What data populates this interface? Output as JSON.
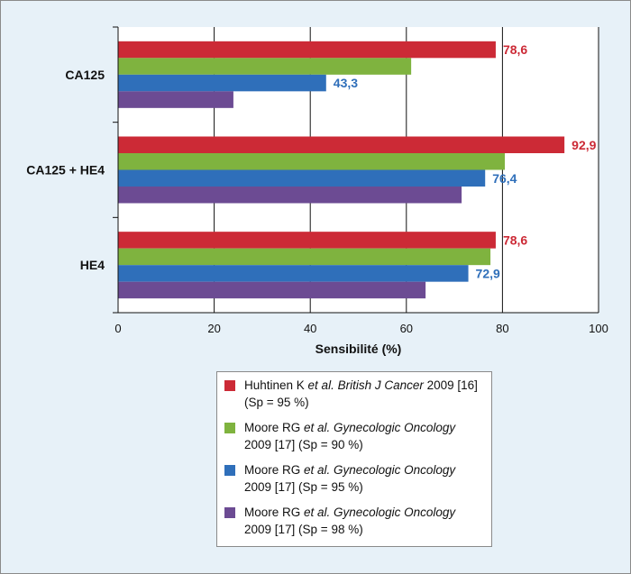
{
  "chart_data": {
    "type": "bar",
    "orientation": "horizontal",
    "categories": [
      "CA125",
      "CA125 + HE4",
      "HE4"
    ],
    "series": [
      {
        "name": "Huhtinen K et al. British J Cancer 2009 [16] (Sp = 95 %)",
        "color": "#cc2a36",
        "values": [
          78.6,
          92.9,
          78.6
        ],
        "labels": [
          "78,6",
          "92,9",
          "78,6"
        ]
      },
      {
        "name": "Moore RG et al. Gynecologic Oncology 2009 [17] (Sp = 90 %)",
        "color": "#7fb33f",
        "values": [
          61,
          80.5,
          77.5
        ],
        "labels": [
          "",
          "",
          ""
        ]
      },
      {
        "name": "Moore RG et al. Gynecologic Oncology 2009 [17] (Sp = 95 %)",
        "color": "#2f6fba",
        "values": [
          43.3,
          76.4,
          72.9
        ],
        "labels": [
          "43,3",
          "76,4",
          "72,9"
        ]
      },
      {
        "name": "Moore RG et al. Gynecologic Oncology 2009 [17] (Sp = 98 %)",
        "color": "#6c4b93",
        "values": [
          24,
          71.5,
          64
        ],
        "labels": [
          "",
          "",
          ""
        ]
      }
    ],
    "xlabel": "Sensibilité (%)",
    "xlim": [
      0,
      100
    ],
    "ticks": [
      0,
      20,
      40,
      60,
      80,
      100
    ],
    "tick_labels": [
      "0",
      "20",
      "40",
      "60",
      "80",
      "100"
    ],
    "grid": "vertical",
    "legend_placement": "bottom-center"
  },
  "legend": [
    {
      "color": "#cc2a36",
      "text_a": "Huhtinen K ",
      "text_it": "et al. British J Cancer",
      "text_b": " 2009 [16] (Sp = 95 %)"
    },
    {
      "color": "#7fb33f",
      "text_a": "Moore RG ",
      "text_it": "et al. Gynecologic Oncology",
      "text_b": " 2009 [17] (Sp = 90 %)"
    },
    {
      "color": "#2f6fba",
      "text_a": "Moore RG ",
      "text_it": "et al. Gynecologic Oncology",
      "text_b": " 2009 [17] (Sp = 95 %)"
    },
    {
      "color": "#6c4b93",
      "text_a": "Moore RG ",
      "text_it": "et al. Gynecologic Oncology",
      "text_b": " 2009 [17] (Sp = 98 %)"
    }
  ]
}
